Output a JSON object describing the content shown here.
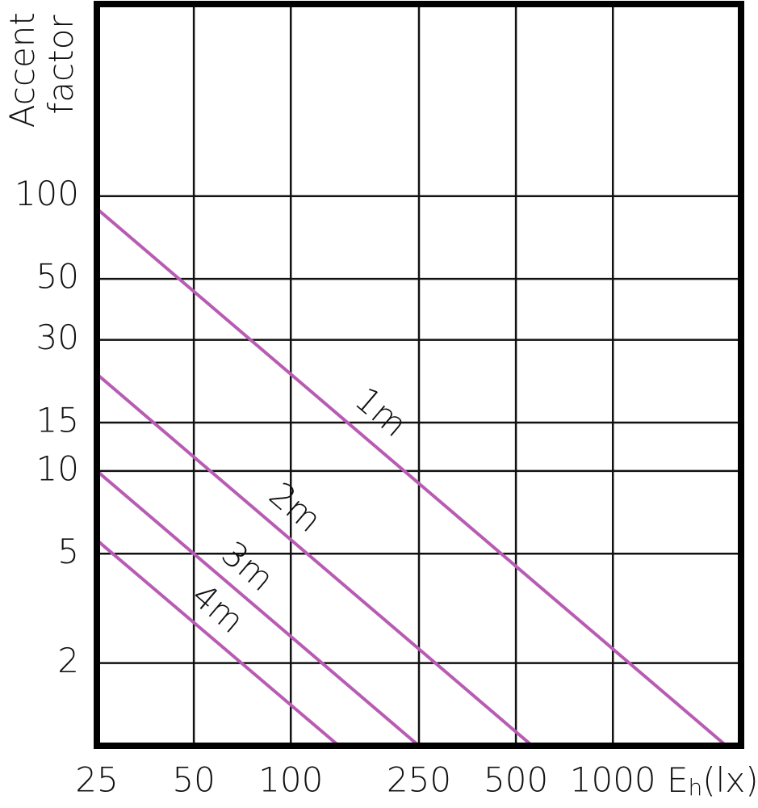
{
  "chart_data": {
    "type": "line",
    "ylabel": [
      "Accent",
      "factor"
    ],
    "xlabel": {
      "main": "E",
      "sub": "h",
      "unit": "(lx)"
    },
    "log_x": true,
    "log_y": true,
    "grid": true,
    "xlim": [
      25,
      2500
    ],
    "xticks": [
      25,
      50,
      100,
      250,
      500,
      1000
    ],
    "ylim": [
      1,
      500
    ],
    "yticks": [
      2,
      5,
      10,
      15,
      30,
      50,
      100
    ],
    "series": [
      {
        "name": "1m",
        "color": "#b85cb3",
        "x": [
          25,
          2250
        ],
        "values": [
          90,
          1
        ]
      },
      {
        "name": "2m",
        "color": "#b85cb3",
        "x": [
          25,
          562
        ],
        "values": [
          22.5,
          1
        ]
      },
      {
        "name": "3m",
        "color": "#b85cb3",
        "x": [
          25,
          250
        ],
        "values": [
          10,
          1
        ]
      },
      {
        "name": "4m",
        "color": "#b85cb3",
        "x": [
          25,
          141
        ],
        "values": [
          5.6,
          1
        ]
      }
    ]
  }
}
